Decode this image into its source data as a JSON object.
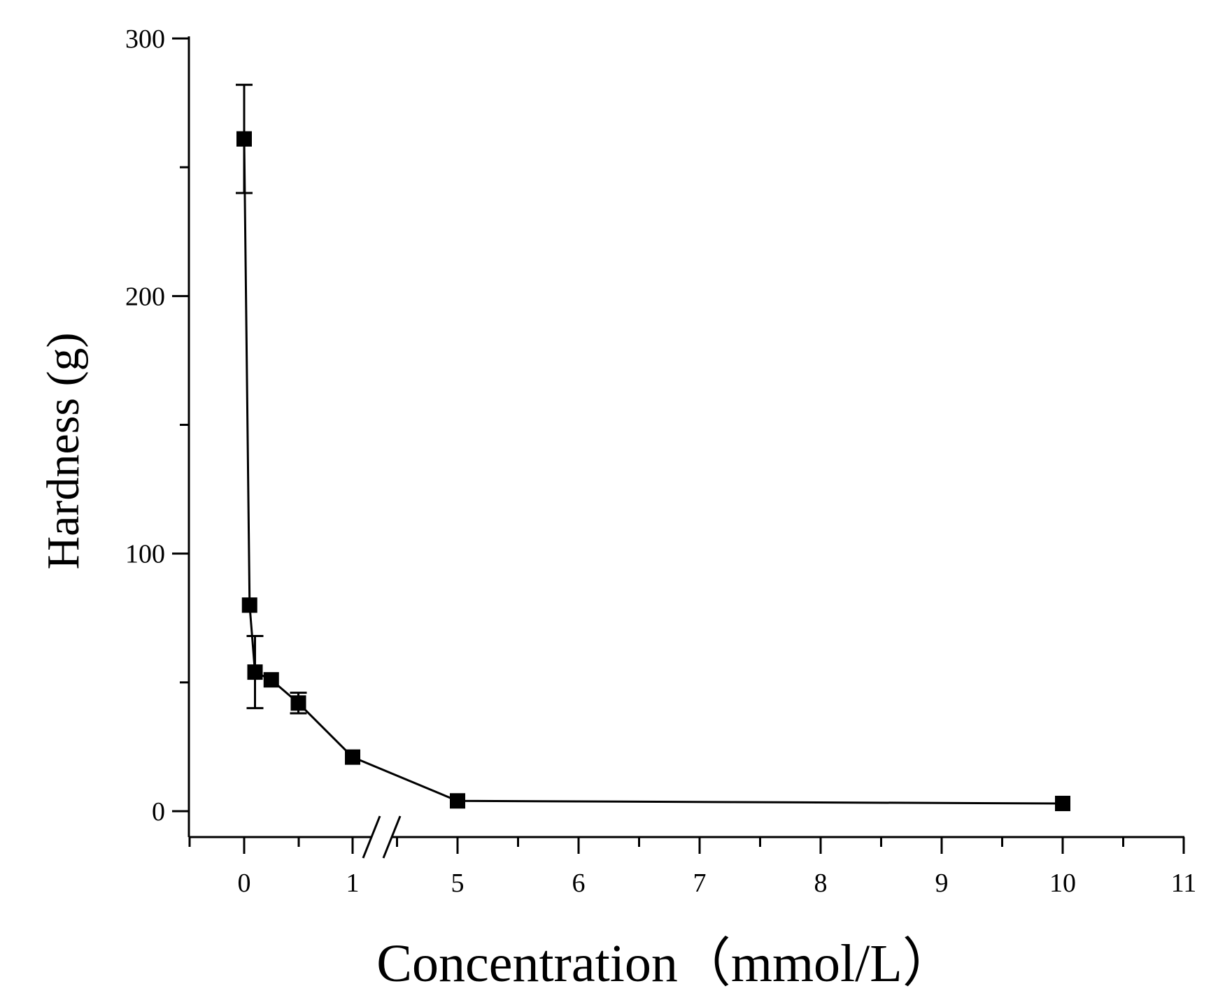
{
  "chart_data": {
    "type": "line",
    "xlabel": "Concentration（mmol/L）",
    "ylabel": "Hardness (g)",
    "x_axis": {
      "broken": true,
      "segments": [
        {
          "range": [
            -0.5,
            1.25
          ],
          "ticks": [
            0,
            1
          ]
        },
        {
          "range": [
            4.2,
            11
          ],
          "ticks": [
            5,
            6,
            7,
            8,
            9,
            10,
            11
          ]
        }
      ]
    },
    "ylim": [
      -10,
      300
    ],
    "y_ticks": [
      0,
      100,
      200,
      300
    ],
    "grid": false,
    "series": [
      {
        "marker": "square",
        "color": "#000000",
        "points": [
          {
            "x": 0,
            "y": 261,
            "err": 21
          },
          {
            "x": 0.05,
            "y": 80,
            "err": 0
          },
          {
            "x": 0.1,
            "y": 54,
            "err": 14
          },
          {
            "x": 0.25,
            "y": 51,
            "err": 0
          },
          {
            "x": 0.5,
            "y": 42,
            "err": 4
          },
          {
            "x": 1,
            "y": 21,
            "err": 0
          },
          {
            "x": 5,
            "y": 4,
            "err": 0
          },
          {
            "x": 10,
            "y": 3,
            "err": 0
          }
        ]
      }
    ]
  }
}
